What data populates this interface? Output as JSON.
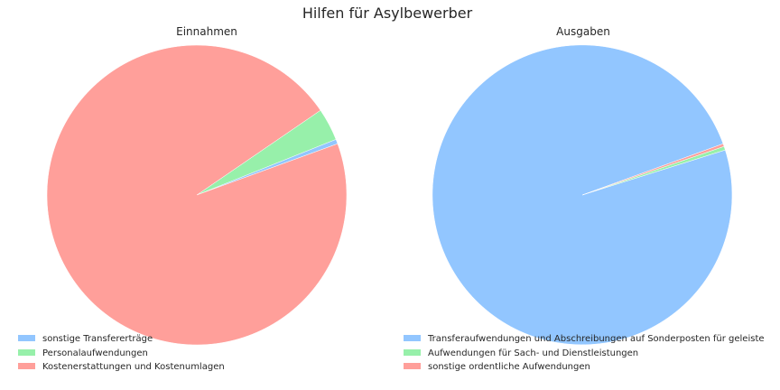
{
  "chart_data": [
    {
      "type": "pie",
      "suptitle": "Hilfen für Asylbewerber",
      "title": "Einnahmen",
      "labels": [
        "sonstige Transfererträge",
        "Personalaufwendungen",
        "Kostenerstattungen und Kostenumlagen"
      ],
      "values": [
        0.5,
        3.5,
        96.0
      ],
      "colors": [
        "#92c6ff",
        "#97f0aa",
        "#ff9f9a"
      ],
      "start_angle_deg": 20,
      "direction": "counterclockwise",
      "legend": "bottom-left"
    },
    {
      "type": "pie",
      "title": "Ausgaben",
      "labels": [
        "Transferaufwendungen und Abschreibungen auf Sonderposten für geleiste",
        "Aufwendungen für Sach- und Dienstleistungen",
        "sonstige ordentliche Aufwendungen"
      ],
      "values": [
        99.3,
        0.4,
        0.3
      ],
      "colors": [
        "#92c6ff",
        "#97f0aa",
        "#ff9f9a"
      ],
      "start_angle_deg": 20,
      "direction": "counterclockwise",
      "legend": "bottom-left"
    }
  ]
}
